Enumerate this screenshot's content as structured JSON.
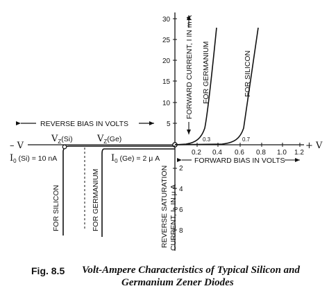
{
  "figure": {
    "axis_end_neg": "– V",
    "axis_end_pos": "+ V",
    "reverse_bias_label": "REVERSE BIAS IN VOLTS",
    "forward_bias_label": "FORWARD BIAS IN VOLTS",
    "forward_current_label": "FORWARD CURRENT, I IN m A",
    "reverse_current_label_1": "REVERSE SATURATION",
    "reverse_current_label_2": "CURRENT, I",
    "reverse_current_label_sub": "0",
    "reverse_current_label_3": " IN μ A",
    "vz_si_main": "V",
    "vz_si_sub": "Z",
    "vz_si_suffix": "(Si)",
    "vz_ge_main": "V",
    "vz_ge_sub": "Z",
    "vz_ge_suffix": "(Ge)",
    "i0_si_main": "I",
    "i0_si_sub": "0",
    "i0_si_suffix": " (Si) = 10 nA",
    "i0_ge_main": "I",
    "i0_ge_sub": "0",
    "i0_ge_suffix": " (Ge) = 2 μ A",
    "for_silicon_forward": "FOR SILICON",
    "for_germanium_forward": "FOR GERMANIUM",
    "for_silicon_reverse": "FOR SILICON",
    "for_germanium_reverse": "FOR GERMANIUM",
    "knee_ge": "0.3",
    "knee_si": "0.7",
    "y_ticks_pos": [
      "30",
      "25",
      "20",
      "15",
      "10",
      "5"
    ],
    "y_ticks_neg": [
      "2",
      "4",
      "6",
      "8"
    ],
    "x_ticks_pos": [
      "0.2",
      "0.4",
      "0.6",
      "0.8",
      "1.0",
      "1.2"
    ]
  },
  "caption": {
    "number": "Fig. 8.5",
    "line1": "Volt-Ampere Characteristics of Typical Silicon and",
    "line2": "Germanium Zener Diodes"
  }
}
